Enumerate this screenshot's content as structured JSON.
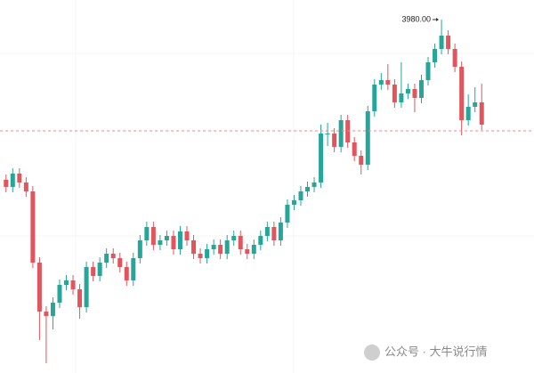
{
  "chart_data": {
    "type": "candlestick",
    "open": [
      3890,
      3886,
      3893.5,
      3888.5,
      3883.5,
      3843.5,
      3816,
      3813.5,
      3821,
      3831,
      3833.5,
      3828.5,
      3818.5,
      3841,
      3836,
      3843.5,
      3848.5,
      3846,
      3841,
      3833.5,
      3846,
      3856,
      3863.5,
      3853.5,
      3856,
      3858.5,
      3851,
      3861,
      3856,
      3848.5,
      3846,
      3851,
      3853.5,
      3848.5,
      3856,
      3858.5,
      3851,
      3848.5,
      3853.5,
      3858.5,
      3863.5,
      3856,
      3866,
      3876,
      3878.5,
      3883.5,
      3886,
      3888.5,
      3916,
      3916,
      3908.5,
      3923.5,
      3911,
      3903.5,
      3898.5,
      3928.5,
      3943.5,
      3946,
      3943.5,
      3933.5,
      3938.5,
      3941,
      3936,
      3946,
      3956,
      3963.5,
      3971,
      3963.5,
      3953.5,
      3923.5,
      3931,
      3933.5
    ],
    "high": [
      3893,
      3896.5,
      3896.5,
      3891.5,
      3886.5,
      3846.5,
      3819,
      3824,
      3834,
      3836.5,
      3836.5,
      3831.5,
      3844,
      3844,
      3846.5,
      3851.5,
      3851.5,
      3849,
      3844,
      3849,
      3859,
      3866.5,
      3866.5,
      3859,
      3861.5,
      3861.5,
      3864,
      3864,
      3859,
      3851.5,
      3854,
      3856.5,
      3856.5,
      3859,
      3861.5,
      3861.5,
      3854,
      3856.5,
      3861.5,
      3866.5,
      3866.5,
      3869,
      3879,
      3881.5,
      3886.5,
      3889,
      3891.5,
      3921,
      3922,
      3919,
      3926.5,
      3926.5,
      3914,
      3906.5,
      3931.5,
      3946.5,
      3950,
      3955,
      3946.5,
      3956,
      3944,
      3944,
      3949,
      3959,
      3966.5,
      3980,
      3974,
      3966.5,
      3956.5,
      3938,
      3942,
      3944
    ],
    "low": [
      3883,
      3883,
      3885.5,
      3880.5,
      3840.5,
      3800,
      3787,
      3806,
      3818,
      3828,
      3825.5,
      3812,
      3815.5,
      3833,
      3833,
      3840.5,
      3843,
      3838,
      3830.5,
      3830.5,
      3843,
      3853,
      3850.5,
      3850.5,
      3853,
      3848,
      3848,
      3853,
      3845.5,
      3843,
      3843,
      3848,
      3845.5,
      3845.5,
      3853,
      3848,
      3845.5,
      3845.5,
      3850.5,
      3855.5,
      3853,
      3853,
      3863,
      3873,
      3875.5,
      3880.5,
      3883,
      3885.5,
      3909,
      3905.5,
      3905.5,
      3908,
      3900.5,
      3893,
      3895.5,
      3925.5,
      3940.5,
      3940.5,
      3930.5,
      3930.5,
      3935.5,
      3928,
      3933,
      3943,
      3953,
      3960.5,
      3960.5,
      3950.5,
      3915,
      3920.5,
      3928,
      3918
    ],
    "close": [
      3886,
      3893.5,
      3888.5,
      3883.5,
      3843.5,
      3816,
      3813.5,
      3821,
      3831,
      3833.5,
      3828.5,
      3818.5,
      3841,
      3836,
      3843.5,
      3848.5,
      3846,
      3841,
      3833.5,
      3846,
      3856,
      3863.5,
      3853.5,
      3856,
      3858.5,
      3851,
      3861,
      3856,
      3848.5,
      3846,
      3851,
      3853.5,
      3848.5,
      3856,
      3858.5,
      3851,
      3848.5,
      3853.5,
      3858.5,
      3863.5,
      3856,
      3866,
      3876,
      3878.5,
      3883.5,
      3886,
      3888.5,
      3916,
      3916,
      3908.5,
      3923.5,
      3911,
      3903.5,
      3898.5,
      3928.5,
      3943.5,
      3946,
      3943.5,
      3933.5,
      3938.5,
      3941,
      3936,
      3946,
      3956,
      3963.5,
      3971,
      3963.5,
      3953.5,
      3923.5,
      3931,
      3933.5,
      3921
    ],
    "up_color": "#26a69a",
    "down_color": "#e2555c",
    "ylim": [
      3781.5,
      3991
    ],
    "price_line": 3917.5,
    "price_line_color": "#e88a8d",
    "annotation": {
      "value": 3980,
      "label": "3980.00"
    },
    "watermark": "公众号 · 大牛说行情"
  }
}
